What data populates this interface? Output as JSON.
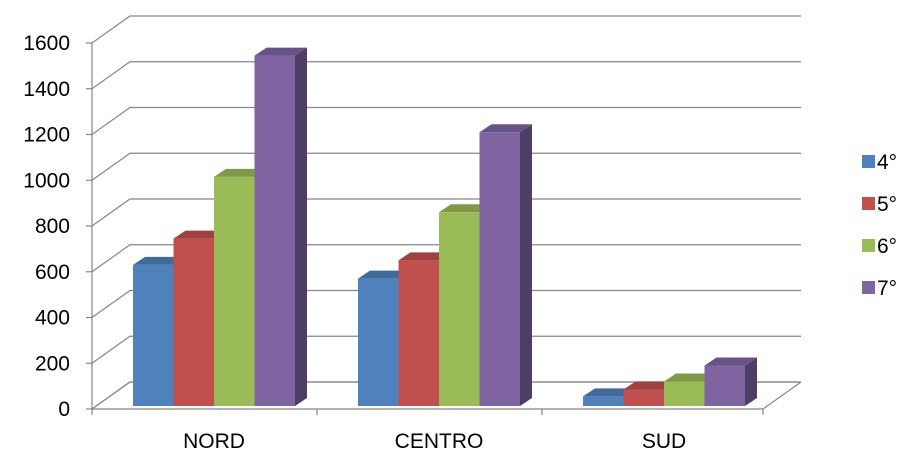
{
  "chart_data": {
    "type": "bar",
    "style": "3d-clustered-column",
    "title": "",
    "xlabel": "",
    "ylabel": "",
    "categories": [
      "NORD",
      "CENTRO",
      "SUD"
    ],
    "series": [
      {
        "name": "4°",
        "color": "#4F81BD",
        "values": [
          630,
          570,
          55
        ]
      },
      {
        "name": "5°",
        "color": "#C0504D",
        "values": [
          745,
          650,
          85
        ]
      },
      {
        "name": "6°",
        "color": "#9BBB59",
        "values": [
          1015,
          860,
          120
        ]
      },
      {
        "name": "7°",
        "color": "#8064A2",
        "values": [
          1545,
          1210,
          190
        ]
      }
    ],
    "ylim": [
      0,
      1600
    ],
    "yticks": [
      "0",
      "200",
      "400",
      "600",
      "800",
      "1000",
      "1200",
      "1400",
      "1600"
    ],
    "grid": true,
    "legend_position": "right"
  }
}
